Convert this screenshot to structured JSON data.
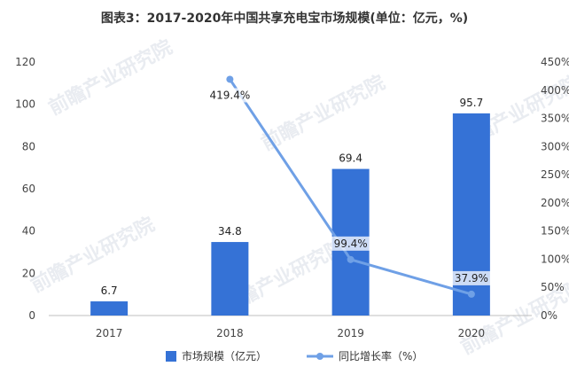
{
  "chart_data": {
    "type": "bar",
    "title": "图表3：2017-2020年中国共享充电宝市场规模(单位：亿元，%)",
    "categories": [
      "2017",
      "2018",
      "2019",
      "2020"
    ],
    "series": [
      {
        "name": "市场规模（亿元）",
        "type": "bar",
        "axis": "left",
        "values": [
          6.7,
          34.8,
          69.4,
          95.7
        ],
        "labels": [
          "6.7",
          "34.8",
          "69.4",
          "95.7"
        ],
        "color": "#3572d6"
      },
      {
        "name": "同比增长率（%）",
        "type": "line",
        "axis": "right",
        "values": [
          null,
          419.4,
          99.4,
          37.9
        ],
        "labels": [
          "",
          "419.4%",
          "99.4%",
          "37.9%"
        ],
        "color": "#6fa0e6"
      }
    ],
    "y_left": {
      "min": 0,
      "max": 120,
      "ticks": [
        "0",
        "20",
        "40",
        "60",
        "80",
        "100",
        "120"
      ]
    },
    "y_right": {
      "min": 0,
      "max": 450,
      "ticks": [
        "0%",
        "50%",
        "100%",
        "150%",
        "200%",
        "250%",
        "300%",
        "350%",
        "400%",
        "450%"
      ]
    },
    "grid": false,
    "legend": "bottom-center"
  },
  "watermark": "前瞻产业研究院"
}
